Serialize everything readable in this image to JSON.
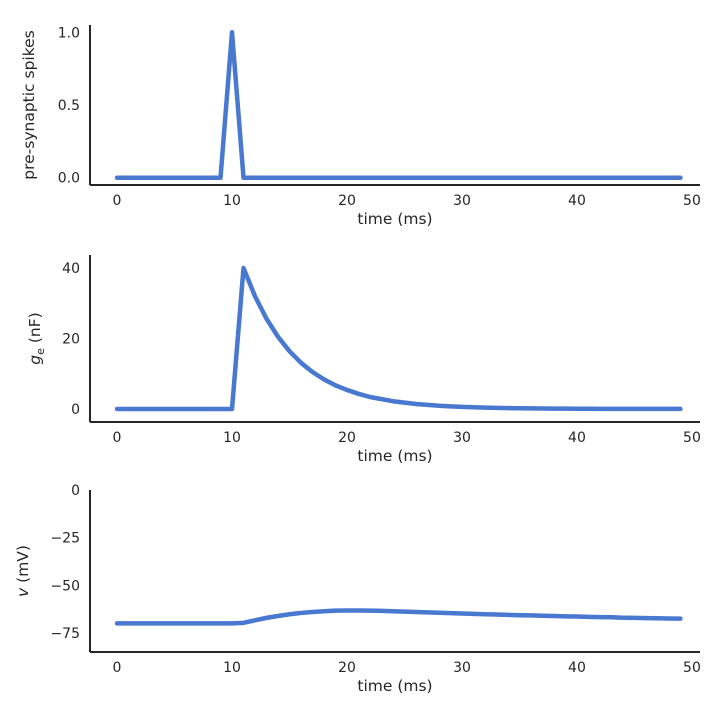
{
  "figure": {
    "background": "#ffffff",
    "line_color": "#4878cf",
    "spine_color": "#262626",
    "text_color": "#262626"
  },
  "chart_data": [
    {
      "id": "presynaptic-spikes",
      "type": "line",
      "title": "",
      "xlabel": "time (ms)",
      "ylabel_plain": "pre-synaptic spikes",
      "ylabel_parts": [
        {
          "text": "pre-synaptic spikes"
        }
      ],
      "x": [
        0,
        1,
        2,
        3,
        4,
        5,
        6,
        7,
        8,
        9,
        10,
        11,
        12,
        13,
        14,
        15,
        16,
        17,
        18,
        19,
        20,
        21,
        22,
        23,
        24,
        25,
        26,
        27,
        28,
        29,
        30,
        31,
        32,
        33,
        34,
        35,
        36,
        37,
        38,
        39,
        40,
        41,
        42,
        43,
        44,
        45,
        46,
        47,
        48,
        49
      ],
      "y": [
        0,
        0,
        0,
        0,
        0,
        0,
        0,
        0,
        0,
        0,
        1,
        0,
        0,
        0,
        0,
        0,
        0,
        0,
        0,
        0,
        0,
        0,
        0,
        0,
        0,
        0,
        0,
        0,
        0,
        0,
        0,
        0,
        0,
        0,
        0,
        0,
        0,
        0,
        0,
        0,
        0,
        0,
        0,
        0,
        0,
        0,
        0,
        0,
        0,
        0
      ],
      "xlim": [
        -2.35,
        50.7
      ],
      "ylim": [
        -0.05,
        1.05
      ],
      "xticks": [
        0,
        10,
        20,
        30,
        40,
        50
      ],
      "xtick_labels": [
        "0",
        "10",
        "20",
        "30",
        "40",
        "50"
      ],
      "yticks": [
        0,
        0.5,
        1
      ],
      "ytick_labels": [
        "0.0",
        "0.5",
        "1.0"
      ],
      "grid": false,
      "legend": "none"
    },
    {
      "id": "excitatory-conductance",
      "type": "line",
      "title": "",
      "xlabel": "time (ms)",
      "ylabel_plain": "ge (nF)",
      "ylabel_parts": [
        {
          "text": "g",
          "style": "italic"
        },
        {
          "text": "e",
          "script": "sub"
        },
        {
          "text": " (nF)"
        }
      ],
      "x": [
        0,
        1,
        2,
        3,
        4,
        5,
        6,
        7,
        8,
        9,
        10,
        11,
        12,
        13,
        14,
        15,
        16,
        17,
        18,
        19,
        20,
        21,
        22,
        23,
        24,
        25,
        26,
        27,
        28,
        29,
        30,
        31,
        32,
        33,
        34,
        35,
        36,
        37,
        38,
        39,
        40,
        41,
        42,
        43,
        44,
        45,
        46,
        47,
        48,
        49
      ],
      "y": [
        0,
        0,
        0,
        0,
        0,
        0,
        0,
        0,
        0,
        0,
        0,
        40,
        32,
        25.6,
        20.5,
        16.4,
        13.1,
        10.5,
        8.4,
        6.7,
        5.4,
        4.3,
        3.4,
        2.8,
        2.2,
        1.8,
        1.4,
        1.15,
        0.92,
        0.74,
        0.59,
        0.47,
        0.38,
        0.3,
        0.24,
        0.19,
        0.16,
        0.12,
        0.1,
        0.08,
        0.06,
        0.05,
        0.04,
        0.03,
        0.03,
        0.02,
        0.02,
        0.01,
        0.01,
        0.01
      ],
      "xlim": [
        -2.35,
        50.7
      ],
      "ylim": [
        -3.7,
        43.7
      ],
      "xticks": [
        0,
        10,
        20,
        30,
        40,
        50
      ],
      "xtick_labels": [
        "0",
        "10",
        "20",
        "30",
        "40",
        "50"
      ],
      "yticks": [
        0,
        20,
        40
      ],
      "ytick_labels": [
        "0",
        "20",
        "40"
      ],
      "grid": false,
      "legend": "none"
    },
    {
      "id": "membrane-potential",
      "type": "line",
      "title": "",
      "xlabel": "time (ms)",
      "ylabel_plain": "v (mV)",
      "ylabel_parts": [
        {
          "text": "v",
          "style": "italic"
        },
        {
          "text": " (mV)"
        }
      ],
      "x": [
        0,
        1,
        2,
        3,
        4,
        5,
        6,
        7,
        8,
        9,
        10,
        11,
        12,
        13,
        14,
        15,
        16,
        17,
        18,
        19,
        20,
        21,
        22,
        23,
        24,
        25,
        26,
        27,
        28,
        29,
        30,
        31,
        32,
        33,
        34,
        35,
        36,
        37,
        38,
        39,
        40,
        41,
        42,
        43,
        44,
        45,
        46,
        47,
        48,
        49
      ],
      "y": [
        -70,
        -70,
        -70,
        -70,
        -70,
        -70,
        -70,
        -70,
        -70,
        -70,
        -70,
        -69.7,
        -68.4,
        -67.1,
        -66.1,
        -65.2,
        -64.5,
        -64.0,
        -63.6,
        -63.3,
        -63.2,
        -63.2,
        -63.3,
        -63.4,
        -63.6,
        -63.8,
        -64.0,
        -64.2,
        -64.4,
        -64.6,
        -64.8,
        -65.0,
        -65.2,
        -65.3,
        -65.5,
        -65.7,
        -65.8,
        -66.0,
        -66.1,
        -66.3,
        -66.4,
        -66.6,
        -66.7,
        -66.8,
        -67.0,
        -67.1,
        -67.2,
        -67.3,
        -67.4,
        -67.5
      ],
      "xlim": [
        -2.35,
        50.7
      ],
      "ylim": [
        -85,
        0
      ],
      "xticks": [
        0,
        10,
        20,
        30,
        40,
        50
      ],
      "xtick_labels": [
        "0",
        "10",
        "20",
        "30",
        "40",
        "50"
      ],
      "yticks": [
        0,
        -25,
        -50,
        -75
      ],
      "ytick_labels": [
        "0",
        "−25",
        "−50",
        "−75"
      ],
      "grid": false,
      "legend": "none"
    }
  ]
}
